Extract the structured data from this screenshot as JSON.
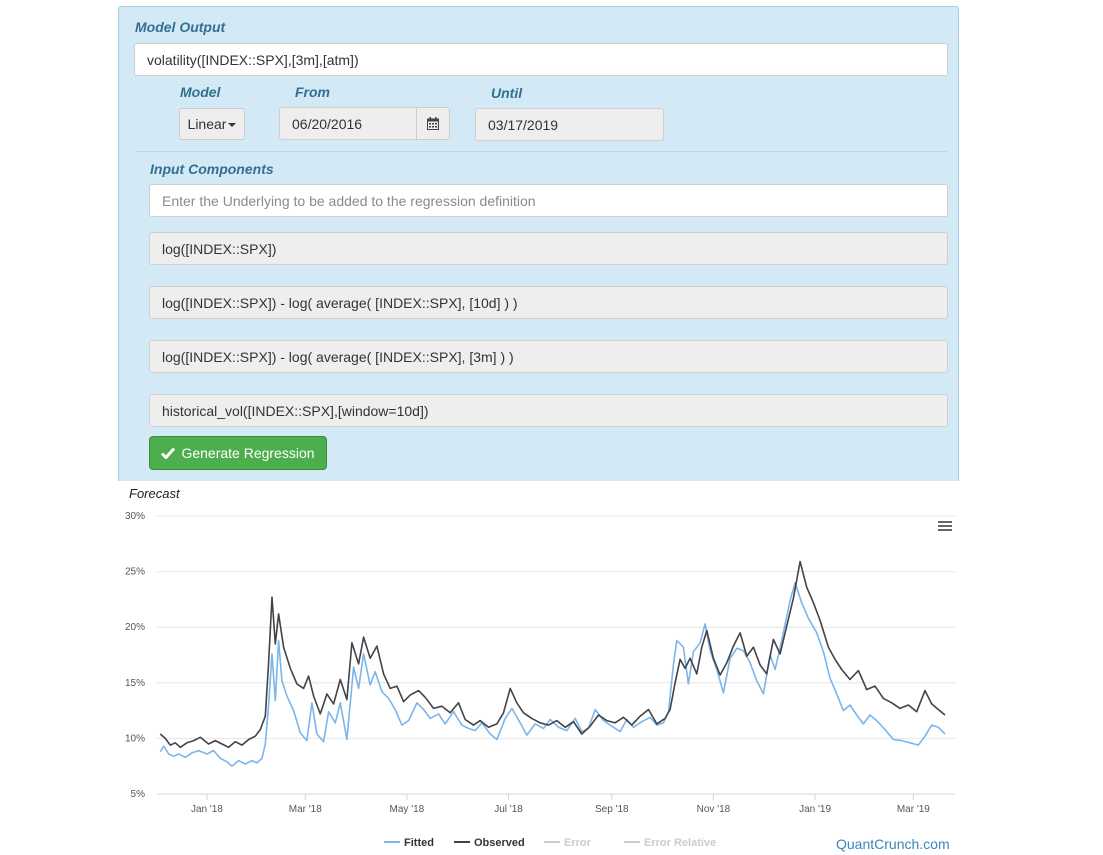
{
  "model_output": {
    "label": "Model Output",
    "value": "volatility([INDEX::SPX],[3m],[atm])"
  },
  "model": {
    "label": "Model",
    "selected": "Linear"
  },
  "from": {
    "label": "From",
    "value": "06/20/2016"
  },
  "until": {
    "label": "Until",
    "value": "03/17/2019"
  },
  "input_components": {
    "label": "Input Components",
    "placeholder": "Enter the Underlying to be added to the regression definition",
    "items": [
      "log([INDEX::SPX])",
      "log([INDEX::SPX]) - log( average( [INDEX::SPX], [10d] ) )",
      "log([INDEX::SPX]) - log( average( [INDEX::SPX], [3m] ) )",
      "historical_vol([INDEX::SPX],[window=10d])"
    ]
  },
  "generate_button": {
    "label": "Generate Regression",
    "color": "#4cae4c"
  },
  "forecast": {
    "title": "Forecast"
  },
  "credit": "QuantCrunch.com",
  "chart_data": {
    "type": "line",
    "x_ticks": [
      "Jan '18",
      "Mar '18",
      "May '18",
      "Jul '18",
      "Sep '18",
      "Nov '18",
      "Jan '19",
      "Mar '19"
    ],
    "y_ticks": [
      "30%",
      "25%",
      "20%",
      "15%",
      "10%",
      "5%"
    ],
    "ylim": [
      5,
      30
    ],
    "x_range": [
      "2017-12-02",
      "2019-03-26"
    ],
    "grid": true,
    "legend_position": "bottom",
    "series": [
      {
        "name": "Fitted",
        "color": "#7cb5ec",
        "points": [
          [
            "2017-12-04",
            8.8
          ],
          [
            "2017-12-06",
            9.3
          ],
          [
            "2017-12-09",
            8.6
          ],
          [
            "2017-12-12",
            8.4
          ],
          [
            "2017-12-15",
            8.6
          ],
          [
            "2017-12-19",
            8.3
          ],
          [
            "2017-12-23",
            8.7
          ],
          [
            "2017-12-27",
            8.9
          ],
          [
            "2018-01-01",
            8.6
          ],
          [
            "2018-01-05",
            8.9
          ],
          [
            "2018-01-09",
            8.2
          ],
          [
            "2018-01-13",
            7.9
          ],
          [
            "2018-01-16",
            7.5
          ],
          [
            "2018-01-20",
            8.0
          ],
          [
            "2018-01-24",
            7.7
          ],
          [
            "2018-01-28",
            8.0
          ],
          [
            "2018-01-31",
            7.8
          ],
          [
            "2018-02-03",
            8.2
          ],
          [
            "2018-02-05",
            9.5
          ],
          [
            "2018-02-07",
            13.0
          ],
          [
            "2018-02-09",
            17.6
          ],
          [
            "2018-02-11",
            13.4
          ],
          [
            "2018-02-13",
            18.8
          ],
          [
            "2018-02-15",
            15.2
          ],
          [
            "2018-02-18",
            13.8
          ],
          [
            "2018-02-22",
            12.5
          ],
          [
            "2018-02-26",
            10.5
          ],
          [
            "2018-03-02",
            9.8
          ],
          [
            "2018-03-05",
            13.2
          ],
          [
            "2018-03-08",
            10.4
          ],
          [
            "2018-03-12",
            9.7
          ],
          [
            "2018-03-15",
            12.4
          ],
          [
            "2018-03-19",
            11.4
          ],
          [
            "2018-03-22",
            13.2
          ],
          [
            "2018-03-26",
            9.9
          ],
          [
            "2018-03-30",
            16.4
          ],
          [
            "2018-04-02",
            14.5
          ],
          [
            "2018-04-05",
            17.6
          ],
          [
            "2018-04-09",
            14.8
          ],
          [
            "2018-04-12",
            16.0
          ],
          [
            "2018-04-16",
            14.2
          ],
          [
            "2018-04-20",
            13.6
          ],
          [
            "2018-04-24",
            12.6
          ],
          [
            "2018-04-28",
            11.2
          ],
          [
            "2018-05-02",
            11.6
          ],
          [
            "2018-05-07",
            13.2
          ],
          [
            "2018-05-11",
            12.6
          ],
          [
            "2018-05-15",
            11.8
          ],
          [
            "2018-05-20",
            12.2
          ],
          [
            "2018-05-24",
            11.3
          ],
          [
            "2018-05-29",
            12.4
          ],
          [
            "2018-06-03",
            11.2
          ],
          [
            "2018-06-07",
            10.9
          ],
          [
            "2018-06-11",
            10.7
          ],
          [
            "2018-06-15",
            11.4
          ],
          [
            "2018-06-20",
            10.4
          ],
          [
            "2018-06-24",
            9.9
          ],
          [
            "2018-06-29",
            11.8
          ],
          [
            "2018-07-03",
            12.7
          ],
          [
            "2018-07-08",
            11.4
          ],
          [
            "2018-07-12",
            10.3
          ],
          [
            "2018-07-17",
            11.3
          ],
          [
            "2018-07-22",
            10.9
          ],
          [
            "2018-07-26",
            11.7
          ],
          [
            "2018-07-31",
            11.0
          ],
          [
            "2018-08-05",
            10.7
          ],
          [
            "2018-08-10",
            11.8
          ],
          [
            "2018-08-14",
            10.6
          ],
          [
            "2018-08-18",
            10.9
          ],
          [
            "2018-08-22",
            12.6
          ],
          [
            "2018-08-27",
            11.6
          ],
          [
            "2018-09-01",
            11.1
          ],
          [
            "2018-09-06",
            10.6
          ],
          [
            "2018-09-10",
            11.7
          ],
          [
            "2018-09-14",
            11.0
          ],
          [
            "2018-09-19",
            11.5
          ],
          [
            "2018-09-24",
            11.9
          ],
          [
            "2018-09-28",
            11.2
          ],
          [
            "2018-10-02",
            11.4
          ],
          [
            "2018-10-05",
            12.4
          ],
          [
            "2018-10-08",
            16.7
          ],
          [
            "2018-10-10",
            18.8
          ],
          [
            "2018-10-14",
            18.2
          ],
          [
            "2018-10-17",
            14.9
          ],
          [
            "2018-10-20",
            17.8
          ],
          [
            "2018-10-24",
            18.6
          ],
          [
            "2018-10-27",
            20.3
          ],
          [
            "2018-10-30",
            17.9
          ],
          [
            "2018-11-03",
            16.2
          ],
          [
            "2018-11-07",
            14.1
          ],
          [
            "2018-11-11",
            17.2
          ],
          [
            "2018-11-15",
            18.1
          ],
          [
            "2018-11-19",
            17.9
          ],
          [
            "2018-11-23",
            16.8
          ],
          [
            "2018-11-27",
            15.2
          ],
          [
            "2018-12-01",
            14.0
          ],
          [
            "2018-12-05",
            17.5
          ],
          [
            "2018-12-08",
            16.2
          ],
          [
            "2018-12-12",
            18.8
          ],
          [
            "2018-12-17",
            22.4
          ],
          [
            "2018-12-20",
            24.0
          ],
          [
            "2018-12-24",
            22.2
          ],
          [
            "2018-12-28",
            20.8
          ],
          [
            "2019-01-02",
            19.5
          ],
          [
            "2019-01-06",
            17.8
          ],
          [
            "2019-01-10",
            15.4
          ],
          [
            "2019-01-14",
            14.0
          ],
          [
            "2019-01-18",
            12.5
          ],
          [
            "2019-01-22",
            13.0
          ],
          [
            "2019-01-26",
            12.1
          ],
          [
            "2019-01-30",
            11.3
          ],
          [
            "2019-02-03",
            12.1
          ],
          [
            "2019-02-07",
            11.6
          ],
          [
            "2019-02-12",
            10.8
          ],
          [
            "2019-02-17",
            9.9
          ],
          [
            "2019-02-22",
            9.8
          ],
          [
            "2019-02-27",
            9.6
          ],
          [
            "2019-03-04",
            9.4
          ],
          [
            "2019-03-08",
            10.2
          ],
          [
            "2019-03-12",
            11.2
          ],
          [
            "2019-03-16",
            11.0
          ],
          [
            "2019-03-20",
            10.4
          ]
        ]
      },
      {
        "name": "Observed",
        "color": "#434348",
        "points": [
          [
            "2017-12-04",
            10.4
          ],
          [
            "2017-12-07",
            10.0
          ],
          [
            "2017-12-10",
            9.4
          ],
          [
            "2017-12-13",
            9.6
          ],
          [
            "2017-12-16",
            9.2
          ],
          [
            "2017-12-20",
            9.6
          ],
          [
            "2017-12-24",
            9.8
          ],
          [
            "2017-12-28",
            10.1
          ],
          [
            "2018-01-02",
            9.5
          ],
          [
            "2018-01-06",
            9.8
          ],
          [
            "2018-01-10",
            9.5
          ],
          [
            "2018-01-14",
            9.2
          ],
          [
            "2018-01-18",
            9.7
          ],
          [
            "2018-01-22",
            9.4
          ],
          [
            "2018-01-26",
            9.9
          ],
          [
            "2018-01-30",
            10.2
          ],
          [
            "2018-02-02",
            10.8
          ],
          [
            "2018-02-05",
            12.0
          ],
          [
            "2018-02-07",
            16.8
          ],
          [
            "2018-02-09",
            22.7
          ],
          [
            "2018-02-11",
            18.5
          ],
          [
            "2018-02-13",
            21.2
          ],
          [
            "2018-02-16",
            18.2
          ],
          [
            "2018-02-20",
            16.3
          ],
          [
            "2018-02-24",
            14.9
          ],
          [
            "2018-02-28",
            14.5
          ],
          [
            "2018-03-03",
            15.6
          ],
          [
            "2018-03-06",
            13.8
          ],
          [
            "2018-03-10",
            12.2
          ],
          [
            "2018-03-14",
            14.0
          ],
          [
            "2018-03-18",
            13.1
          ],
          [
            "2018-03-22",
            15.3
          ],
          [
            "2018-03-26",
            13.5
          ],
          [
            "2018-03-29",
            18.6
          ],
          [
            "2018-04-02",
            16.7
          ],
          [
            "2018-04-05",
            19.1
          ],
          [
            "2018-04-09",
            17.2
          ],
          [
            "2018-04-13",
            18.3
          ],
          [
            "2018-04-17",
            15.8
          ],
          [
            "2018-04-21",
            14.5
          ],
          [
            "2018-04-25",
            14.7
          ],
          [
            "2018-04-29",
            13.3
          ],
          [
            "2018-05-03",
            13.9
          ],
          [
            "2018-05-08",
            14.3
          ],
          [
            "2018-05-12",
            13.7
          ],
          [
            "2018-05-17",
            12.7
          ],
          [
            "2018-05-22",
            12.9
          ],
          [
            "2018-05-27",
            12.3
          ],
          [
            "2018-06-01",
            13.2
          ],
          [
            "2018-06-05",
            11.7
          ],
          [
            "2018-06-10",
            11.2
          ],
          [
            "2018-06-14",
            11.6
          ],
          [
            "2018-06-19",
            11.0
          ],
          [
            "2018-06-24",
            11.3
          ],
          [
            "2018-06-28",
            12.3
          ],
          [
            "2018-07-02",
            14.5
          ],
          [
            "2018-07-06",
            13.2
          ],
          [
            "2018-07-10",
            12.3
          ],
          [
            "2018-07-15",
            11.8
          ],
          [
            "2018-07-20",
            11.4
          ],
          [
            "2018-07-25",
            11.2
          ],
          [
            "2018-07-30",
            11.6
          ],
          [
            "2018-08-04",
            11.0
          ],
          [
            "2018-08-09",
            11.5
          ],
          [
            "2018-08-14",
            10.4
          ],
          [
            "2018-08-19",
            11.1
          ],
          [
            "2018-08-24",
            12.1
          ],
          [
            "2018-08-29",
            11.6
          ],
          [
            "2018-09-03",
            11.4
          ],
          [
            "2018-09-08",
            11.9
          ],
          [
            "2018-09-13",
            11.2
          ],
          [
            "2018-09-18",
            12.0
          ],
          [
            "2018-09-23",
            12.6
          ],
          [
            "2018-09-28",
            11.3
          ],
          [
            "2018-10-03",
            11.8
          ],
          [
            "2018-10-06",
            12.6
          ],
          [
            "2018-10-09",
            15.0
          ],
          [
            "2018-10-12",
            17.1
          ],
          [
            "2018-10-15",
            16.3
          ],
          [
            "2018-10-18",
            17.2
          ],
          [
            "2018-10-22",
            15.8
          ],
          [
            "2018-10-25",
            18.2
          ],
          [
            "2018-10-28",
            19.7
          ],
          [
            "2018-11-01",
            17.2
          ],
          [
            "2018-11-05",
            15.7
          ],
          [
            "2018-11-09",
            16.8
          ],
          [
            "2018-11-13",
            18.3
          ],
          [
            "2018-11-17",
            19.5
          ],
          [
            "2018-11-21",
            17.4
          ],
          [
            "2018-11-25",
            18.2
          ],
          [
            "2018-11-29",
            16.6
          ],
          [
            "2018-12-03",
            15.8
          ],
          [
            "2018-12-07",
            18.9
          ],
          [
            "2018-12-11",
            17.6
          ],
          [
            "2018-12-15",
            20.1
          ],
          [
            "2018-12-19",
            22.6
          ],
          [
            "2018-12-23",
            25.9
          ],
          [
            "2018-12-27",
            23.6
          ],
          [
            "2018-12-31",
            22.2
          ],
          [
            "2019-01-04",
            20.6
          ],
          [
            "2019-01-09",
            18.2
          ],
          [
            "2019-01-13",
            17.1
          ],
          [
            "2019-01-17",
            16.2
          ],
          [
            "2019-01-22",
            15.3
          ],
          [
            "2019-01-27",
            16.1
          ],
          [
            "2019-02-01",
            14.4
          ],
          [
            "2019-02-06",
            14.7
          ],
          [
            "2019-02-11",
            13.6
          ],
          [
            "2019-02-16",
            13.2
          ],
          [
            "2019-02-21",
            12.7
          ],
          [
            "2019-02-26",
            13.0
          ],
          [
            "2019-03-03",
            12.4
          ],
          [
            "2019-03-08",
            14.3
          ],
          [
            "2019-03-12",
            13.1
          ],
          [
            "2019-03-16",
            12.6
          ],
          [
            "2019-03-20",
            12.1
          ]
        ]
      },
      {
        "name": "Error",
        "color": "#cccccc",
        "points": []
      },
      {
        "name": "Error Relative",
        "color": "#cccccc",
        "points": []
      }
    ]
  }
}
